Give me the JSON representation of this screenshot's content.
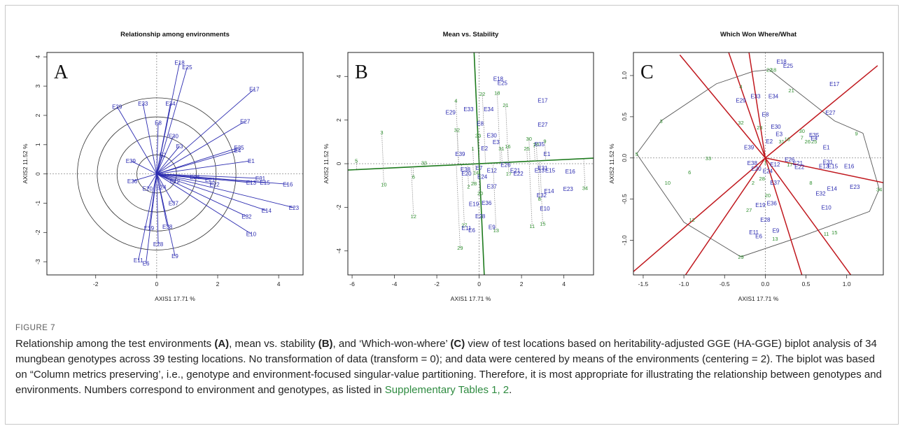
{
  "figure_label": "FIGURE 7",
  "caption": {
    "t1": "Relationship among the test environments ",
    "a": "(A)",
    "t2": ", mean vs. stability ",
    "b": "(B)",
    "t3": ", and ‘Which-won-where’ ",
    "c": "(C)",
    "t4": " view of test locations based on heritability-adjusted GGE (HA-GGE) biplot analysis of 34 mungbean genotypes across 39 testing locations. No transformation of data (transform = 0); and data were centered by means of the environments (centering = 2). The biplot was based on “Column metrics preserving’, i.e., genotype and environment-focused singular-value partitioning. Therefore, it is most appropriate for illustrating the relationship between genotypes and environments. Numbers correspond to environment and genotypes, as listed in ",
    "link": "Supplementary Tables 1, 2",
    "t5": "."
  },
  "colors": {
    "env": "#2b2bb0",
    "gen": "#2f8f2f",
    "axis_line": "#1d7a1d",
    "ray": "#c0181e",
    "dotted": "#777777"
  },
  "chart_data": [
    {
      "type": "scatter",
      "panel_letter": "A",
      "title": "Relationship among environments",
      "xlabel": "AXIS1 17.71 %",
      "ylabel": "AXIS2 11.52 %",
      "xlim": [
        -3.6,
        4.8
      ],
      "ylim": [
        -3.45,
        4.15
      ],
      "xticks": [
        -2,
        0,
        2,
        4
      ],
      "yticks": [
        -3,
        -2,
        -1,
        0,
        1,
        2,
        3,
        4
      ],
      "circle_radii": [
        0.65,
        1.3,
        1.95,
        2.6
      ],
      "vectors_from_origin": true,
      "environments": [
        {
          "label": "E18",
          "x": 0.75,
          "y": 3.8
        },
        {
          "label": "E25",
          "x": 1.0,
          "y": 3.65
        },
        {
          "label": "E17",
          "x": 3.2,
          "y": 2.9
        },
        {
          "label": "E29",
          "x": -1.3,
          "y": 2.3
        },
        {
          "label": "E33",
          "x": -0.45,
          "y": 2.4
        },
        {
          "label": "E34",
          "x": 0.45,
          "y": 2.4
        },
        {
          "label": "E27",
          "x": 2.9,
          "y": 1.8
        },
        {
          "label": "E8",
          "x": 0.05,
          "y": 1.75
        },
        {
          "label": "E30",
          "x": 0.55,
          "y": 1.3
        },
        {
          "label": "E3",
          "x": 0.75,
          "y": 0.95
        },
        {
          "label": "E35",
          "x": 2.7,
          "y": 0.9
        },
        {
          "label": "E4",
          "x": 2.65,
          "y": 0.8
        },
        {
          "label": "E2",
          "x": 0.2,
          "y": 0.65
        },
        {
          "label": "E1",
          "x": 3.1,
          "y": 0.45
        },
        {
          "label": "E39",
          "x": -0.85,
          "y": 0.45
        },
        {
          "label": "E31",
          "x": 3.4,
          "y": -0.15
        },
        {
          "label": "E13",
          "x": 3.1,
          "y": -0.3
        },
        {
          "label": "E15",
          "x": 3.55,
          "y": -0.3
        },
        {
          "label": "E16",
          "x": 4.3,
          "y": -0.35
        },
        {
          "label": "E26",
          "x": 1.25,
          "y": -0.1
        },
        {
          "label": "E21",
          "x": 1.75,
          "y": -0.2
        },
        {
          "label": "E22",
          "x": 1.9,
          "y": -0.35
        },
        {
          "label": "E12",
          "x": 0.6,
          "y": -0.25
        },
        {
          "label": "E24",
          "x": 0.15,
          "y": -0.45
        },
        {
          "label": "E20",
          "x": -0.3,
          "y": -0.5
        },
        {
          "label": "E36",
          "x": -0.8,
          "y": -0.25
        },
        {
          "label": "E37",
          "x": 0.55,
          "y": -1.0
        },
        {
          "label": "E23",
          "x": 4.5,
          "y": -1.15
        },
        {
          "label": "E14",
          "x": 3.6,
          "y": -1.25
        },
        {
          "label": "E32",
          "x": 2.95,
          "y": -1.45
        },
        {
          "label": "E10",
          "x": 3.1,
          "y": -2.05
        },
        {
          "label": "E38",
          "x": 0.35,
          "y": -1.8
        },
        {
          "label": "E19",
          "x": -0.25,
          "y": -1.85
        },
        {
          "label": "E28",
          "x": 0.05,
          "y": -2.4
        },
        {
          "label": "E9",
          "x": 0.6,
          "y": -2.8
        },
        {
          "label": "E11",
          "x": -0.6,
          "y": -2.95
        },
        {
          "label": "E6",
          "x": -0.35,
          "y": -3.05
        }
      ]
    },
    {
      "type": "scatter",
      "panel_letter": "B",
      "title": "Mean vs. Stability",
      "xlabel": "AXIS1 17.71 %",
      "ylabel": "AXIS2 11.52 %",
      "xlim": [
        -6.2,
        5.4
      ],
      "ylim": [
        -5.1,
        5.1
      ],
      "xticks": [
        -6,
        -4,
        -2,
        0,
        2,
        4
      ],
      "yticks": [
        -4,
        -2,
        0,
        2,
        4
      ],
      "aec_abscissa_slope": 0.047,
      "genotypes": [
        {
          "label": "5",
          "x": -5.8,
          "y": 0.15
        },
        {
          "label": "3",
          "x": -4.6,
          "y": 1.45
        },
        {
          "label": "10",
          "x": -4.5,
          "y": -0.95
        },
        {
          "label": "33",
          "x": -2.6,
          "y": 0.05
        },
        {
          "label": "6",
          "x": -3.1,
          "y": -0.6
        },
        {
          "label": "12",
          "x": -3.1,
          "y": -2.4
        },
        {
          "label": "4",
          "x": -1.1,
          "y": 2.9
        },
        {
          "label": "32",
          "x": -1.05,
          "y": 1.55
        },
        {
          "label": "27",
          "x": -0.7,
          "y": -2.8
        },
        {
          "label": "29",
          "x": -0.9,
          "y": -3.85
        },
        {
          "label": "22",
          "x": 0.15,
          "y": 3.2
        },
        {
          "label": "18",
          "x": 0.85,
          "y": 3.25
        },
        {
          "label": "21",
          "x": 1.25,
          "y": 2.7
        },
        {
          "label": "23",
          "x": -0.05,
          "y": 1.3
        },
        {
          "label": "1",
          "x": -0.3,
          "y": 0.7
        },
        {
          "label": "31",
          "x": 1.05,
          "y": 0.7
        },
        {
          "label": "16",
          "x": 1.35,
          "y": 0.8
        },
        {
          "label": "30",
          "x": 2.35,
          "y": 1.15
        },
        {
          "label": "7",
          "x": 2.6,
          "y": 0.85
        },
        {
          "label": "25",
          "x": 2.25,
          "y": 0.7
        },
        {
          "label": "26",
          "x": 2.7,
          "y": 0.9
        },
        {
          "label": "9",
          "x": 3.1,
          "y": 1.05
        },
        {
          "label": "17",
          "x": 1.4,
          "y": -0.45
        },
        {
          "label": "2",
          "x": -0.5,
          "y": -1.05
        },
        {
          "label": "28",
          "x": -0.25,
          "y": -0.9
        },
        {
          "label": "20",
          "x": 0.05,
          "y": -1.35
        },
        {
          "label": "8",
          "x": 2.85,
          "y": -1.6
        },
        {
          "label": "11",
          "x": 2.5,
          "y": -2.85
        },
        {
          "label": "15",
          "x": 3.0,
          "y": -2.75
        },
        {
          "label": "13",
          "x": 0.8,
          "y": -3.05
        },
        {
          "label": "34",
          "x": 5.0,
          "y": -1.1
        },
        {
          "label": "14",
          "x": -0.15,
          "y": -0.4
        }
      ],
      "environments": [
        {
          "label": "E18",
          "x": 0.9,
          "y": 3.9
        },
        {
          "label": "E25",
          "x": 1.1,
          "y": 3.7
        },
        {
          "label": "E17",
          "x": 3.0,
          "y": 2.9
        },
        {
          "label": "E29",
          "x": -1.35,
          "y": 2.35
        },
        {
          "label": "E33",
          "x": -0.5,
          "y": 2.5
        },
        {
          "label": "E34",
          "x": 0.45,
          "y": 2.5
        },
        {
          "label": "E27",
          "x": 3.0,
          "y": 1.8
        },
        {
          "label": "E8",
          "x": 0.05,
          "y": 1.85
        },
        {
          "label": "E30",
          "x": 0.6,
          "y": 1.3
        },
        {
          "label": "E3",
          "x": 0.8,
          "y": 1.0
        },
        {
          "label": "E2",
          "x": 0.25,
          "y": 0.7
        },
        {
          "label": "E35",
          "x": 2.85,
          "y": 0.9
        },
        {
          "label": "E1",
          "x": 3.2,
          "y": 0.45
        },
        {
          "label": "E39",
          "x": -0.9,
          "y": 0.45
        },
        {
          "label": "E31",
          "x": 3.0,
          "y": -0.2
        },
        {
          "label": "E13",
          "x": 2.85,
          "y": -0.3
        },
        {
          "label": "E15",
          "x": 3.35,
          "y": -0.3
        },
        {
          "label": "E16",
          "x": 4.3,
          "y": -0.35
        },
        {
          "label": "E26",
          "x": 1.25,
          "y": -0.05
        },
        {
          "label": "E21",
          "x": 1.7,
          "y": -0.3
        },
        {
          "label": "E22",
          "x": 1.85,
          "y": -0.45
        },
        {
          "label": "E38",
          "x": -0.65,
          "y": -0.25
        },
        {
          "label": "E7",
          "x": 0.0,
          "y": -0.2
        },
        {
          "label": "E12",
          "x": 0.6,
          "y": -0.3
        },
        {
          "label": "E20",
          "x": -0.6,
          "y": -0.45
        },
        {
          "label": "E24",
          "x": 0.15,
          "y": -0.6
        },
        {
          "label": "E37",
          "x": 0.6,
          "y": -1.05
        },
        {
          "label": "E23",
          "x": 4.2,
          "y": -1.15
        },
        {
          "label": "E14",
          "x": 3.3,
          "y": -1.25
        },
        {
          "label": "E32",
          "x": 2.95,
          "y": -1.45
        },
        {
          "label": "E10",
          "x": 3.1,
          "y": -2.05
        },
        {
          "label": "E19",
          "x": -0.25,
          "y": -1.85
        },
        {
          "label": "E36",
          "x": 0.35,
          "y": -1.8
        },
        {
          "label": "E28",
          "x": 0.05,
          "y": -2.4
        },
        {
          "label": "E9",
          "x": 0.6,
          "y": -2.9
        },
        {
          "label": "E11",
          "x": -0.6,
          "y": -2.95
        },
        {
          "label": "E6",
          "x": -0.35,
          "y": -3.05
        }
      ]
    },
    {
      "type": "scatter",
      "panel_letter": "C",
      "title": "Which Won Where/What",
      "xlabel": "AXIS1 17.71 %",
      "ylabel": "AXIS2 11.52 %",
      "xlim": [
        -1.62,
        1.45
      ],
      "ylim": [
        -1.42,
        1.28
      ],
      "xticks": [
        -1.5,
        -1.0,
        -0.5,
        0.0,
        0.5,
        1.0
      ],
      "yticks": [
        -1.0,
        -0.5,
        0.0,
        0.5,
        1.0
      ],
      "convex_hull": [
        [
          -1.58,
          0.05
        ],
        [
          -1.28,
          0.45
        ],
        [
          -0.6,
          0.9
        ],
        [
          -0.15,
          1.05
        ],
        [
          0.05,
          1.07
        ],
        [
          0.85,
          0.45
        ],
        [
          1.2,
          0.3
        ],
        [
          1.4,
          -0.38
        ],
        [
          1.28,
          -0.65
        ],
        [
          0.45,
          -0.95
        ],
        [
          -0.3,
          -1.2
        ],
        [
          -1.0,
          -0.78
        ],
        [
          -1.58,
          0.05
        ]
      ],
      "rays_end": [
        [
          -1.62,
          -1.38
        ],
        [
          -1.05,
          1.25
        ],
        [
          -0.45,
          1.28
        ],
        [
          -0.2,
          1.28
        ],
        [
          1.38,
          1.12
        ],
        [
          1.45,
          -0.3
        ],
        [
          1.05,
          -1.42
        ],
        [
          0.45,
          -1.42
        ],
        [
          -0.98,
          -1.42
        ]
      ],
      "genotypes": [
        {
          "label": "5",
          "x": -1.58,
          "y": 0.05
        },
        {
          "label": "3",
          "x": -1.28,
          "y": 0.45
        },
        {
          "label": "10",
          "x": -1.2,
          "y": -0.3
        },
        {
          "label": "6",
          "x": -0.93,
          "y": -0.17
        },
        {
          "label": "33",
          "x": -0.7,
          "y": 0.0
        },
        {
          "label": "12",
          "x": -0.9,
          "y": -0.75
        },
        {
          "label": "4",
          "x": -0.3,
          "y": 0.87
        },
        {
          "label": "32",
          "x": -0.3,
          "y": 0.43
        },
        {
          "label": "23",
          "x": -0.07,
          "y": 0.37
        },
        {
          "label": "22",
          "x": 0.05,
          "y": 1.07
        },
        {
          "label": "18",
          "x": 0.1,
          "y": 1.07
        },
        {
          "label": "21",
          "x": 0.32,
          "y": 0.82
        },
        {
          "label": "30",
          "x": 0.45,
          "y": 0.33
        },
        {
          "label": "7",
          "x": 0.45,
          "y": 0.25
        },
        {
          "label": "16",
          "x": 0.27,
          "y": 0.23
        },
        {
          "label": "31",
          "x": 0.2,
          "y": 0.2
        },
        {
          "label": "25",
          "x": 0.6,
          "y": 0.2
        },
        {
          "label": "26",
          "x": 0.52,
          "y": 0.2
        },
        {
          "label": "9",
          "x": 1.12,
          "y": 0.3
        },
        {
          "label": "17",
          "x": 0.3,
          "y": -0.08
        },
        {
          "label": "1",
          "x": 0.0,
          "y": -0.05
        },
        {
          "label": "2",
          "x": -0.15,
          "y": -0.3
        },
        {
          "label": "28",
          "x": -0.04,
          "y": -0.25
        },
        {
          "label": "20",
          "x": 0.03,
          "y": -0.45
        },
        {
          "label": "8",
          "x": 0.56,
          "y": -0.3
        },
        {
          "label": "27",
          "x": -0.2,
          "y": -0.63
        },
        {
          "label": "29",
          "x": -0.3,
          "y": -1.2
        },
        {
          "label": "13",
          "x": 0.12,
          "y": -0.98
        },
        {
          "label": "11",
          "x": 0.75,
          "y": -0.92
        },
        {
          "label": "15",
          "x": 0.85,
          "y": -0.9
        },
        {
          "label": "34",
          "x": 1.4,
          "y": -0.38
        }
      ],
      "environments": [
        {
          "label": "E18",
          "x": 0.2,
          "y": 1.17
        },
        {
          "label": "E25",
          "x": 0.28,
          "y": 1.12
        },
        {
          "label": "E17",
          "x": 0.85,
          "y": 0.9
        },
        {
          "label": "E29",
          "x": -0.3,
          "y": 0.7
        },
        {
          "label": "E33",
          "x": -0.12,
          "y": 0.75
        },
        {
          "label": "E34",
          "x": 0.1,
          "y": 0.75
        },
        {
          "label": "E27",
          "x": 0.8,
          "y": 0.55
        },
        {
          "label": "E8",
          "x": 0.0,
          "y": 0.53
        },
        {
          "label": "E30",
          "x": 0.13,
          "y": 0.38
        },
        {
          "label": "E3",
          "x": 0.17,
          "y": 0.29
        },
        {
          "label": "E35",
          "x": 0.6,
          "y": 0.28
        },
        {
          "label": "E4",
          "x": 0.6,
          "y": 0.24
        },
        {
          "label": "E2",
          "x": 0.05,
          "y": 0.2
        },
        {
          "label": "E1",
          "x": 0.75,
          "y": 0.13
        },
        {
          "label": "E39",
          "x": -0.2,
          "y": 0.13
        },
        {
          "label": "E31",
          "x": 0.77,
          "y": -0.05
        },
        {
          "label": "E13",
          "x": 0.72,
          "y": -0.1
        },
        {
          "label": "E15",
          "x": 0.83,
          "y": -0.1
        },
        {
          "label": "E16",
          "x": 1.03,
          "y": -0.1
        },
        {
          "label": "E26",
          "x": 0.3,
          "y": -0.02
        },
        {
          "label": "E21",
          "x": 0.4,
          "y": -0.06
        },
        {
          "label": "E22",
          "x": 0.42,
          "y": -0.11
        },
        {
          "label": "E12",
          "x": 0.12,
          "y": -0.08
        },
        {
          "label": "E38",
          "x": -0.16,
          "y": -0.06
        },
        {
          "label": "E20",
          "x": -0.11,
          "y": -0.13
        },
        {
          "label": "E24",
          "x": 0.03,
          "y": -0.16
        },
        {
          "label": "E37",
          "x": 0.12,
          "y": -0.3
        },
        {
          "label": "E23",
          "x": 1.1,
          "y": -0.35
        },
        {
          "label": "E14",
          "x": 0.82,
          "y": -0.37
        },
        {
          "label": "E32",
          "x": 0.68,
          "y": -0.43
        },
        {
          "label": "E10",
          "x": 0.75,
          "y": -0.6
        },
        {
          "label": "E19",
          "x": -0.06,
          "y": -0.57
        },
        {
          "label": "E36",
          "x": 0.08,
          "y": -0.55
        },
        {
          "label": "E28",
          "x": 0.0,
          "y": -0.75
        },
        {
          "label": "E9",
          "x": 0.13,
          "y": -0.88
        },
        {
          "label": "E11",
          "x": -0.14,
          "y": -0.9
        },
        {
          "label": "E6",
          "x": -0.08,
          "y": -0.95
        }
      ]
    }
  ]
}
